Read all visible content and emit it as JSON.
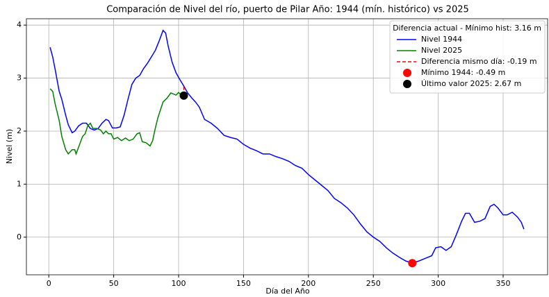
{
  "chart_data": {
    "type": "line",
    "title": "Comparación de Nivel del río, puerto de Pilar Año: 1944 (mín. histórico) vs 2025",
    "xlabel": "Día del Año",
    "ylabel": "Nivel (m)",
    "xlim": [
      -17.25,
      384.25
    ],
    "ylim": [
      -0.71,
      4.12
    ],
    "xticks": [
      0,
      50,
      100,
      150,
      200,
      250,
      300,
      350
    ],
    "yticks": [
      0,
      1,
      2,
      3,
      4
    ],
    "grid": true,
    "legend": "upper right",
    "legend_title": "Diferencia actual - Mínimo hist: 3.16 m",
    "series": [
      {
        "name": "Nivel 1944",
        "color": "#0000ff",
        "x": [
          1,
          3,
          5,
          8,
          10,
          13,
          15,
          18,
          20,
          23,
          26,
          29,
          32,
          35,
          38,
          41,
          44,
          46,
          49,
          52,
          55,
          58,
          61,
          64,
          67,
          70,
          73,
          76,
          79,
          82,
          85,
          88,
          90,
          92,
          95,
          98,
          101,
          104,
          107,
          110,
          113,
          116,
          120,
          125,
          130,
          135,
          140,
          145,
          150,
          155,
          160,
          165,
          170,
          175,
          180,
          185,
          190,
          195,
          200,
          205,
          210,
          215,
          220,
          225,
          230,
          235,
          240,
          245,
          250,
          255,
          260,
          265,
          270,
          275,
          280,
          285,
          290,
          295,
          298,
          302,
          306,
          310,
          314,
          318,
          321,
          324,
          328,
          332,
          336,
          340,
          343,
          346,
          350,
          353,
          357,
          361,
          364,
          366
        ],
        "values": [
          3.58,
          3.4,
          3.15,
          2.75,
          2.6,
          2.3,
          2.12,
          1.97,
          2.0,
          2.1,
          2.15,
          2.15,
          2.05,
          2.02,
          2.05,
          2.15,
          2.22,
          2.2,
          2.06,
          2.06,
          2.08,
          2.3,
          2.6,
          2.88,
          3.0,
          3.05,
          3.18,
          3.28,
          3.4,
          3.52,
          3.7,
          3.9,
          3.85,
          3.6,
          3.3,
          3.1,
          2.97,
          2.85,
          2.72,
          2.63,
          2.55,
          2.45,
          2.22,
          2.15,
          2.05,
          1.92,
          1.88,
          1.85,
          1.75,
          1.68,
          1.63,
          1.57,
          1.57,
          1.52,
          1.48,
          1.43,
          1.35,
          1.3,
          1.18,
          1.08,
          0.98,
          0.88,
          0.73,
          0.65,
          0.55,
          0.42,
          0.25,
          0.1,
          0.0,
          -0.08,
          -0.2,
          -0.3,
          -0.38,
          -0.45,
          -0.49,
          -0.45,
          -0.4,
          -0.35,
          -0.2,
          -0.18,
          -0.25,
          -0.18,
          0.05,
          0.3,
          0.45,
          0.45,
          0.28,
          0.3,
          0.35,
          0.58,
          0.62,
          0.55,
          0.42,
          0.42,
          0.47,
          0.38,
          0.28,
          0.15
        ]
      },
      {
        "name": "Nivel 2025",
        "color": "#008000",
        "x": [
          1,
          3,
          5,
          8,
          10,
          13,
          15,
          18,
          20,
          21,
          23,
          26,
          28,
          30,
          32,
          34,
          37,
          40,
          42,
          44,
          46,
          48,
          50,
          53,
          56,
          59,
          62,
          65,
          68,
          70,
          72,
          75,
          78,
          80,
          82,
          84,
          86,
          88,
          91,
          94,
          96,
          98,
          100,
          102,
          104
        ],
        "values": [
          2.8,
          2.75,
          2.5,
          2.2,
          1.9,
          1.65,
          1.57,
          1.65,
          1.65,
          1.57,
          1.7,
          1.9,
          1.95,
          2.1,
          2.15,
          2.05,
          2.05,
          2.02,
          1.95,
          2.0,
          1.95,
          1.95,
          1.85,
          1.88,
          1.82,
          1.87,
          1.82,
          1.85,
          1.95,
          1.97,
          1.8,
          1.78,
          1.72,
          1.82,
          2.05,
          2.25,
          2.4,
          2.55,
          2.62,
          2.72,
          2.7,
          2.68,
          2.73,
          2.68,
          2.67
        ]
      }
    ],
    "difference": {
      "name": "Diferencia mismo día: -0.19 m",
      "color": "#ff0000",
      "x": 104,
      "values": [
        2.67,
        2.86
      ]
    },
    "points": [
      {
        "name": "Mínimo 1944: -0.49 m",
        "color": "#ff0000",
        "x": 280,
        "value": -0.49
      },
      {
        "name": "Último valor 2025: 2.67 m",
        "color": "#000000",
        "x": 104,
        "value": 2.67
      }
    ]
  }
}
